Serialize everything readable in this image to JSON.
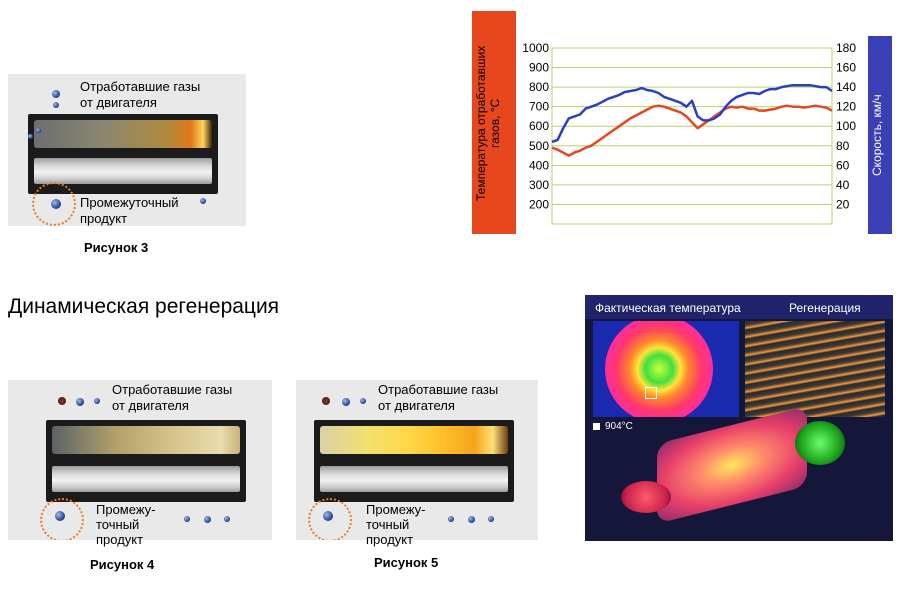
{
  "figure3": {
    "label_gases": "Отработавшие газы\nот двигателя",
    "label_gases_l1": "Отработавшие газы",
    "label_gases_l2": "от двигателя",
    "label_product_l1": "Промежуточный",
    "label_product_l2": "продукт",
    "caption": "Рисунок 3"
  },
  "section_title": "Динамическая регенерация",
  "figure4": {
    "label_gases_l1": "Отработавшие газы",
    "label_gases_l2": "от двигателя",
    "label_product_l1": "Промежу-",
    "label_product_l2": "точный",
    "label_product_l3": "продукт",
    "caption": "Рисунок 4"
  },
  "figure5": {
    "label_gases_l1": "Отработавшие газы",
    "label_gases_l2": "от двигателя",
    "label_product_l1": "Промежу-",
    "label_product_l2": "точный",
    "label_product_l3": "продукт",
    "caption": "Рисунок 5"
  },
  "thermo": {
    "actual_temp": "Фактическая температура",
    "regeneration": "Регенерация",
    "reading": "904°C"
  },
  "chart_data": {
    "type": "line",
    "ylabel_left": "Температура отработавших газов, °C",
    "ylabel_left_l1": "Температура отработавших",
    "ylabel_left_l2": "газов, °C",
    "ylabel_right": "Скорость, км/ч",
    "left_ticks": [
      "1000",
      "900",
      "800",
      "700",
      "600",
      "500",
      "400",
      "300",
      "200"
    ],
    "right_ticks": [
      "180",
      "160",
      "140",
      "120",
      "100",
      "80",
      "60",
      "40",
      "20"
    ],
    "ylim_left": [
      100,
      1000
    ],
    "ylim_right": [
      0,
      180
    ],
    "x": [
      0,
      2,
      4,
      6,
      8,
      10,
      12,
      14,
      16,
      18,
      20,
      22,
      24,
      26,
      28,
      30,
      32,
      34,
      36,
      38,
      40,
      42,
      44,
      46,
      48,
      50,
      52,
      54,
      56,
      58,
      60,
      62,
      64,
      66,
      68,
      70,
      72,
      74,
      76,
      78,
      80,
      82,
      84,
      86,
      88,
      90,
      92,
      94,
      96,
      98,
      100
    ],
    "xlim": [
      0,
      100
    ],
    "series": [
      {
        "name": "",
        "axis": "left",
        "color": "#e8461c",
        "values": [
          490,
          480,
          465,
          450,
          465,
          475,
          490,
          500,
          520,
          540,
          560,
          580,
          600,
          620,
          640,
          655,
          670,
          685,
          700,
          705,
          700,
          690,
          680,
          670,
          650,
          620,
          590,
          610,
          630,
          650,
          670,
          690,
          700,
          695,
          700,
          690,
          690,
          680,
          680,
          685,
          690,
          700,
          705,
          700,
          700,
          695,
          700,
          705,
          700,
          695,
          680
        ]
      },
      {
        "name": "",
        "axis": "right",
        "color": "#2a3fc3",
        "values": [
          84,
          86,
          98,
          108,
          110,
          112,
          118,
          120,
          122,
          125,
          128,
          130,
          132,
          135,
          136,
          137,
          139,
          137,
          136,
          134,
          130,
          128,
          126,
          124,
          120,
          126,
          110,
          106,
          106,
          108,
          112,
          120,
          126,
          130,
          132,
          134,
          134,
          133,
          136,
          138,
          138,
          140,
          141,
          142,
          142,
          142,
          142,
          141,
          140,
          140,
          136
        ]
      }
    ],
    "grid": true
  },
  "colors": {
    "left_axis_bg": "#e8461c",
    "right_axis_bg": "#3a3fb5",
    "temp_line": "#e8461c",
    "speed_line": "#2a3fc3",
    "grid": "#b8d36a",
    "circle": "#f07b1d"
  }
}
